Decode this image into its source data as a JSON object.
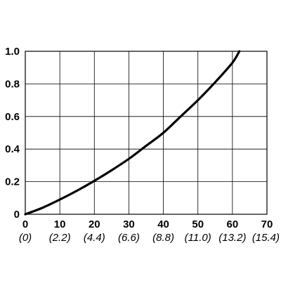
{
  "chart_data": {
    "type": "line",
    "title": "",
    "xlabel": "",
    "ylabel": "",
    "xlim": [
      0,
      70
    ],
    "ylim": [
      0,
      1.0
    ],
    "grid": true,
    "x_ticks": [
      0,
      10,
      20,
      30,
      40,
      50,
      60,
      70
    ],
    "x_tick_labels": [
      "0",
      "10",
      "20",
      "30",
      "40",
      "50",
      "60",
      "70"
    ],
    "x_secondary_tick_labels": [
      "(0)",
      "(2.2)",
      "(4.4)",
      "(6.6)",
      "(8.8)",
      "(11.0)",
      "(13.2)",
      "(15.4)"
    ],
    "y_ticks": [
      0,
      0.2,
      0.4,
      0.6,
      0.8,
      1.0
    ],
    "y_tick_labels": [
      "0",
      "0.2",
      "0.4",
      "0.6",
      "0.8",
      "1.0"
    ],
    "series": [
      {
        "x": [
          0,
          5,
          10,
          15,
          20,
          25,
          30,
          35,
          40,
          45,
          50,
          55,
          60,
          62
        ],
        "y": [
          0,
          0.04,
          0.09,
          0.145,
          0.205,
          0.27,
          0.34,
          0.42,
          0.5,
          0.6,
          0.7,
          0.81,
          0.93,
          1.0
        ],
        "color": "#000000"
      }
    ]
  }
}
